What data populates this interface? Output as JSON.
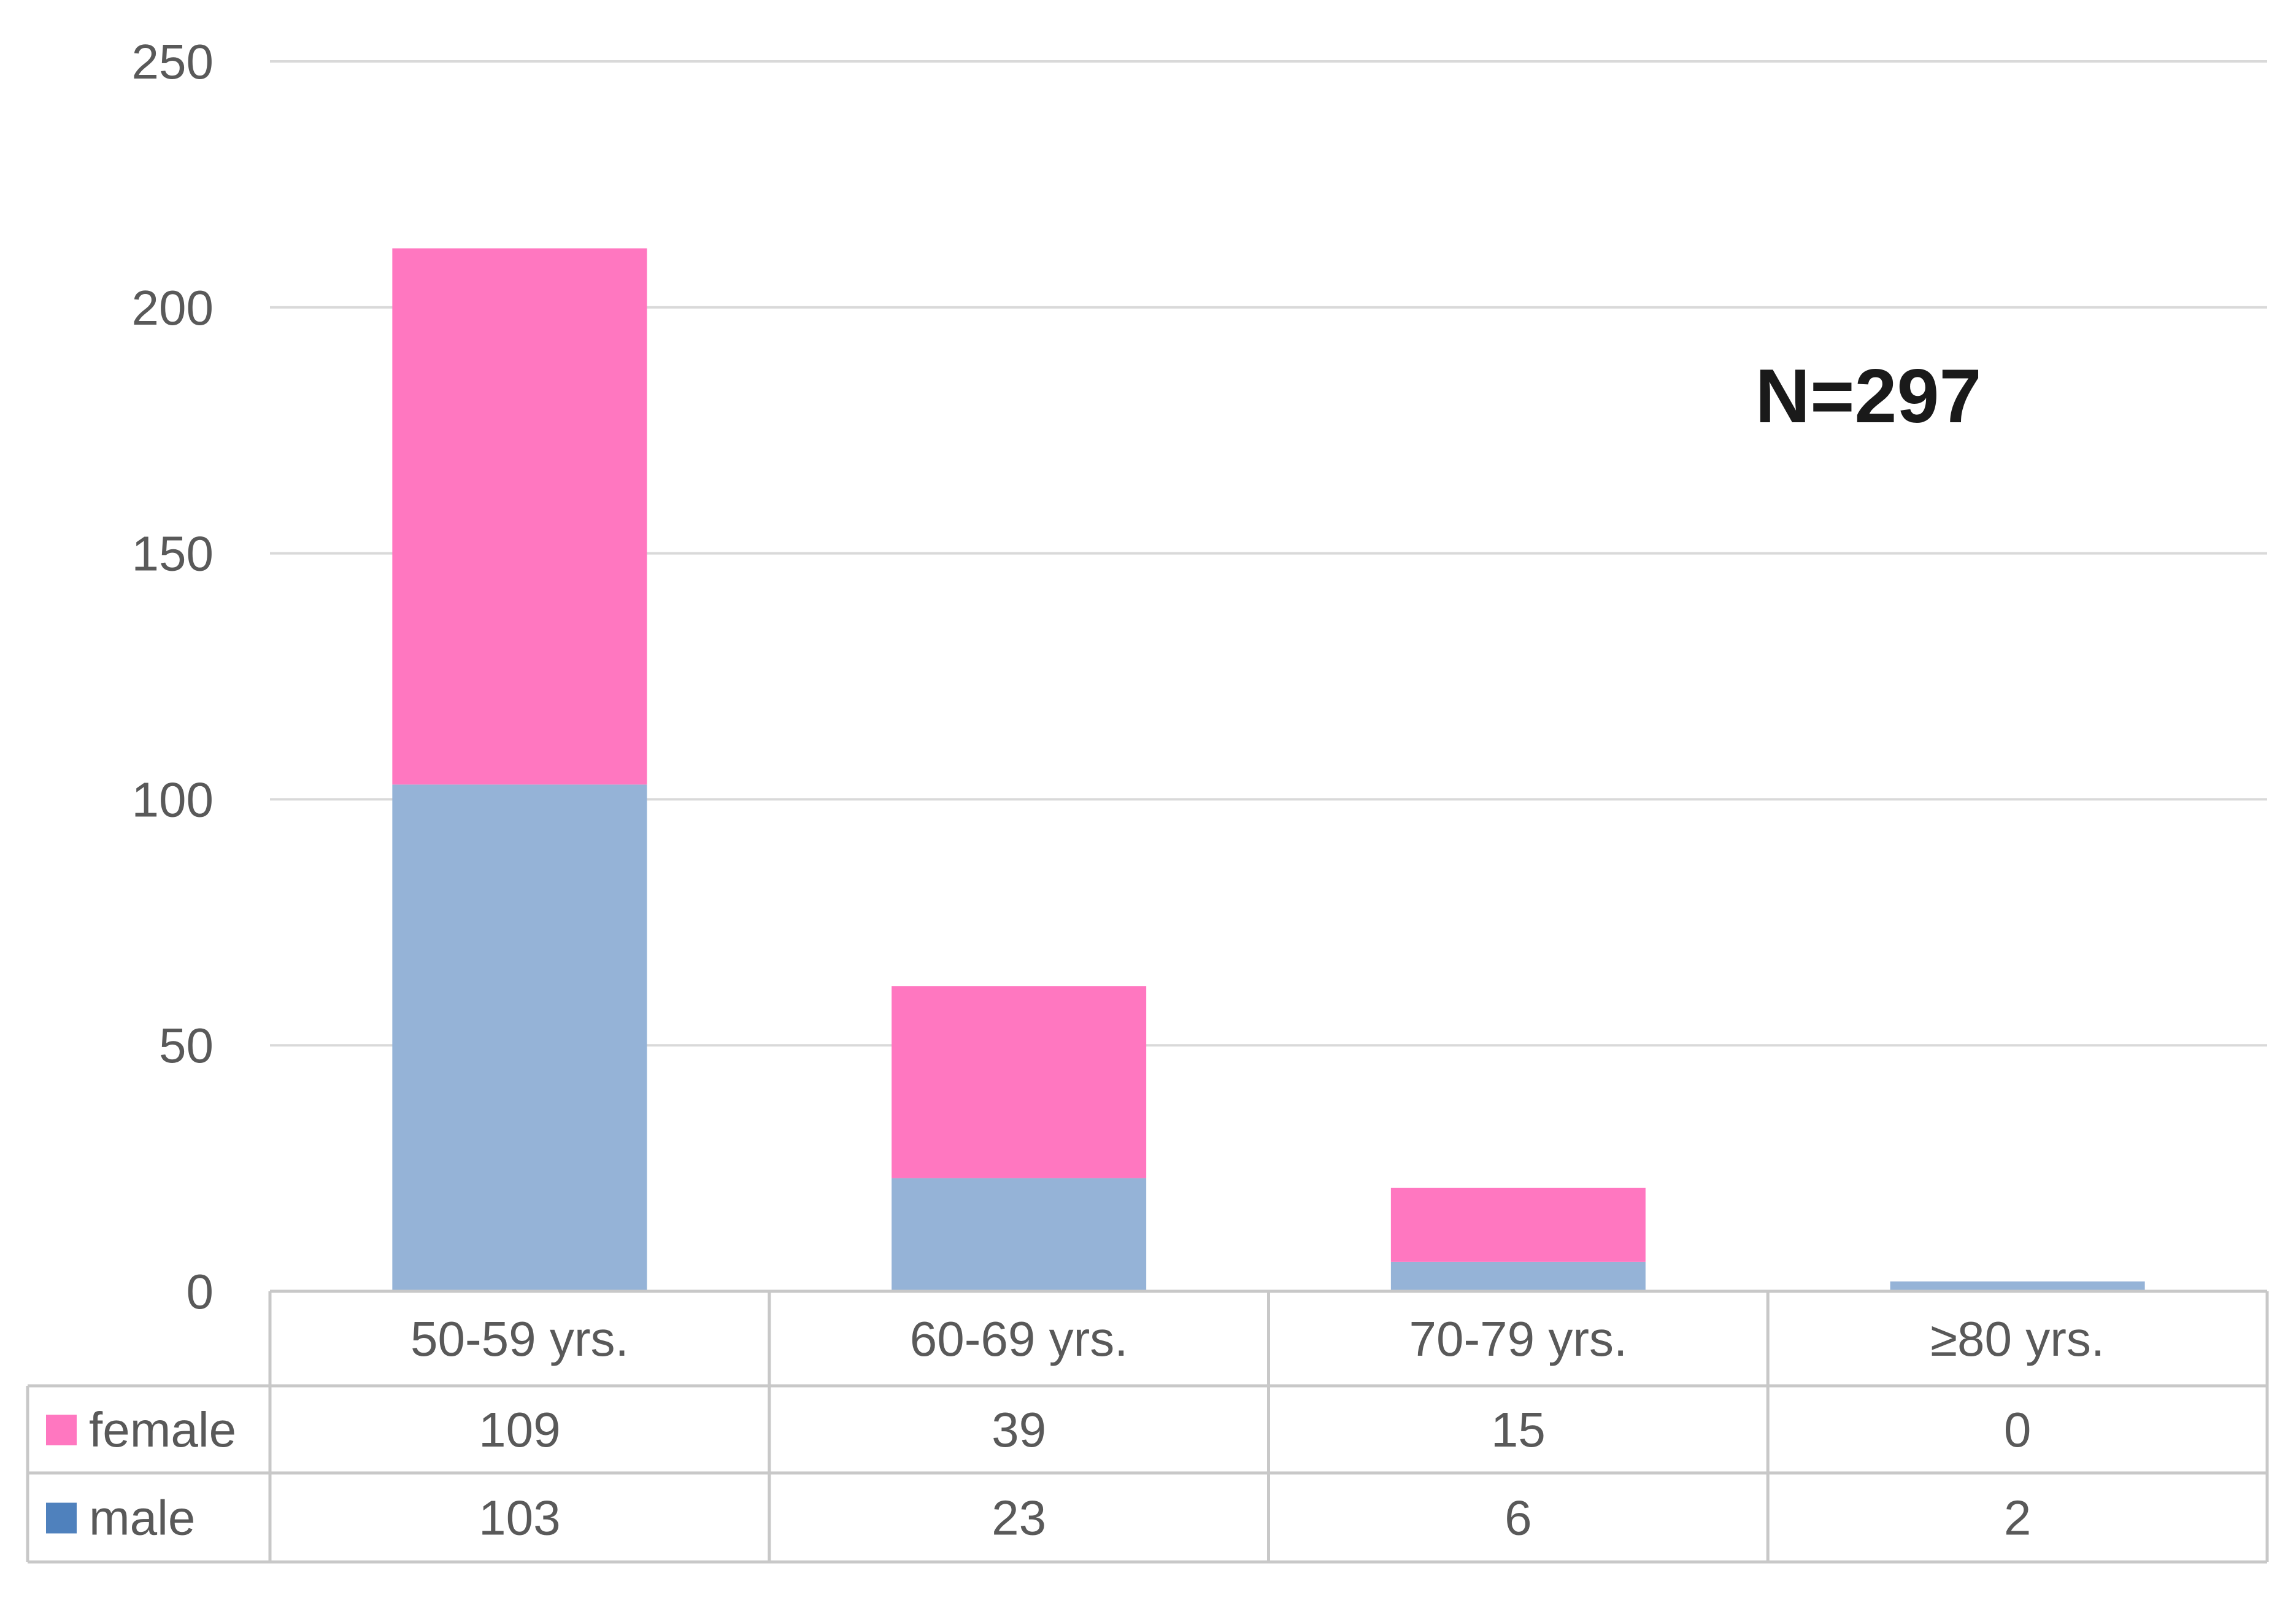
{
  "chart_data": {
    "type": "bar",
    "stacked": true,
    "title": "",
    "xlabel": "",
    "ylabel": "",
    "ylim": [
      0,
      250
    ],
    "yticks": [
      0,
      50,
      100,
      150,
      200,
      250
    ],
    "grid": true,
    "annotation": "N=297",
    "categories": [
      "50-59 yrs.",
      "60-69 yrs.",
      "70-79 yrs.",
      "≥80 yrs."
    ],
    "series": [
      {
        "name": "male",
        "values": [
          103,
          23,
          6,
          2
        ],
        "color": "#95b3d7",
        "legend_color": "#4f81bd"
      },
      {
        "name": "female",
        "values": [
          109,
          39,
          15,
          0
        ],
        "color": "#ff77c0",
        "legend_color": "#ff77c0"
      }
    ],
    "data_table": {
      "rows": [
        {
          "series": "female",
          "values": [
            "109",
            "39",
            "15",
            "0"
          ]
        },
        {
          "series": "male",
          "values": [
            "103",
            "23",
            "6",
            "2"
          ]
        }
      ]
    }
  }
}
